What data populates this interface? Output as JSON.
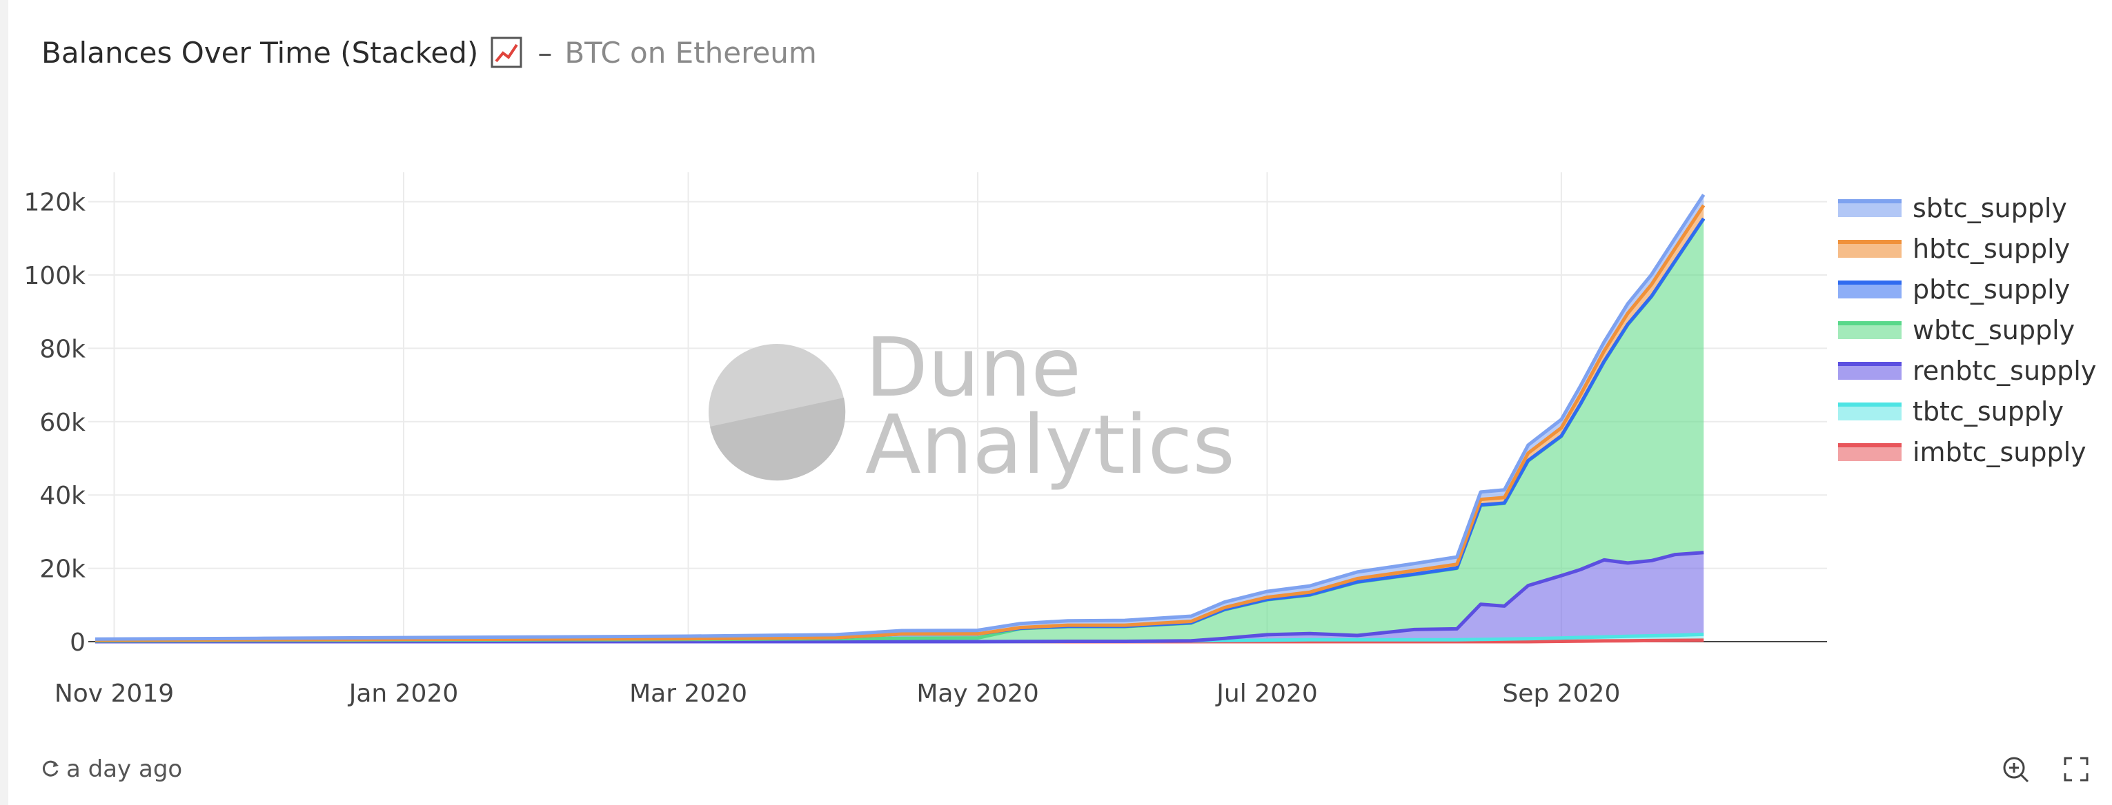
{
  "header": {
    "title": "Balances Over Time (Stacked)",
    "dash": "–",
    "subtitle": "BTC on Ethereum"
  },
  "watermark": {
    "line1": "Dune",
    "line2": "Analytics"
  },
  "footer": {
    "refresh_text": "a day ago"
  },
  "chart_data": {
    "type": "area",
    "stacked": true,
    "x_axis": {
      "ticks": [
        "Nov 2019",
        "Jan 2020",
        "Mar 2020",
        "May 2020",
        "Jul 2020",
        "Sep 2020"
      ],
      "range": [
        "2019-10-28",
        "2020-10-27"
      ]
    },
    "y_axis": {
      "ticks": [
        "0",
        "20k",
        "40k",
        "60k",
        "80k",
        "100k",
        "120k"
      ],
      "range": [
        0,
        128000
      ]
    },
    "grid": true,
    "legend_position": "right",
    "x": [
      "2019-10-28",
      "2019-12-01",
      "2020-01-01",
      "2020-02-01",
      "2020-03-01",
      "2020-04-01",
      "2020-04-15",
      "2020-05-01",
      "2020-05-10",
      "2020-05-20",
      "2020-06-01",
      "2020-06-15",
      "2020-06-22",
      "2020-07-01",
      "2020-07-10",
      "2020-07-20",
      "2020-08-01",
      "2020-08-10",
      "2020-08-15",
      "2020-08-20",
      "2020-08-25",
      "2020-09-01",
      "2020-09-05",
      "2020-09-10",
      "2020-09-15",
      "2020-09-20",
      "2020-09-25",
      "2020-10-01"
    ],
    "series": [
      {
        "name": "imbtc_supply",
        "color": "#e8555a",
        "fill": "rgba(232,85,90,0.5)",
        "values": [
          0,
          0,
          0,
          0,
          0,
          0,
          0,
          0,
          0,
          0,
          0,
          0,
          0,
          0,
          0,
          0,
          0,
          0,
          0,
          0,
          0,
          100,
          150,
          200,
          250,
          300,
          350,
          400
        ]
      },
      {
        "name": "tbtc_supply",
        "color": "#4ee4e4",
        "fill": "rgba(78,228,228,0.45)",
        "values": [
          0,
          0,
          0,
          0,
          0,
          0,
          0,
          0,
          50,
          100,
          100,
          200,
          300,
          400,
          500,
          500,
          500,
          500,
          600,
          700,
          800,
          900,
          1000,
          1100,
          1200,
          1300,
          1400,
          1600
        ]
      },
      {
        "name": "renbtc_supply",
        "color": "#5b4fe0",
        "fill": "rgba(106,94,230,0.55)",
        "values": [
          0,
          0,
          0,
          0,
          0,
          0,
          0,
          0,
          0,
          0,
          0,
          50,
          600,
          1500,
          1700,
          1200,
          2800,
          3000,
          9600,
          9000,
          14500,
          17000,
          18500,
          21000,
          20000,
          20500,
          22000,
          22300
        ]
      },
      {
        "name": "wbtc_supply",
        "color": "#59d88a",
        "fill": "rgba(102,220,140,0.6)",
        "values": [
          200,
          300,
          400,
          500,
          600,
          800,
          900,
          1000,
          3500,
          4000,
          4000,
          4800,
          7800,
          9500,
          10500,
          14500,
          15000,
          16500,
          27000,
          28000,
          34000,
          38000,
          45000,
          54000,
          65000,
          72000,
          80000,
          91000
        ]
      },
      {
        "name": "pbtc_supply",
        "color": "#2f6bf0",
        "fill": "rgba(47,107,240,0.5)",
        "values": [
          200,
          200,
          200,
          200,
          200,
          300,
          1200,
          1100,
          100,
          100,
          100,
          100,
          100,
          100,
          100,
          100,
          100,
          100,
          100,
          100,
          100,
          100,
          100,
          100,
          100,
          100,
          100,
          100
        ]
      },
      {
        "name": "hbtc_supply",
        "color": "#f0913a",
        "fill": "rgba(240,145,58,0.55)",
        "values": [
          0,
          0,
          0,
          0,
          0,
          0,
          0,
          0,
          200,
          300,
          300,
          400,
          500,
          600,
          700,
          900,
          1000,
          1000,
          1500,
          1500,
          2000,
          2200,
          2500,
          2800,
          3000,
          3200,
          3400,
          3600
        ]
      },
      {
        "name": "sbtc_supply",
        "color": "#7ea2f0",
        "fill": "rgba(126,162,240,0.55)",
        "values": [
          300,
          400,
          500,
          600,
          700,
          800,
          900,
          1000,
          1100,
          1200,
          1300,
          1400,
          1500,
          1600,
          1700,
          1800,
          1900,
          2000,
          2000,
          2100,
          2200,
          2300,
          2400,
          2500,
          2600,
          2700,
          2800,
          2900
        ]
      }
    ]
  },
  "legend": [
    {
      "label": "sbtc_supply",
      "color": "#7ea2f0",
      "fill": "rgba(126,162,240,0.6)"
    },
    {
      "label": "hbtc_supply",
      "color": "#f0913a",
      "fill": "rgba(240,145,58,0.6)"
    },
    {
      "label": "pbtc_supply",
      "color": "#2f6bf0",
      "fill": "rgba(47,107,240,0.55)"
    },
    {
      "label": "wbtc_supply",
      "color": "#59d88a",
      "fill": "rgba(102,220,140,0.6)"
    },
    {
      "label": "renbtc_supply",
      "color": "#5b4fe0",
      "fill": "rgba(106,94,230,0.6)"
    },
    {
      "label": "tbtc_supply",
      "color": "#4ee4e4",
      "fill": "rgba(78,228,228,0.5)"
    },
    {
      "label": "imbtc_supply",
      "color": "#e8555a",
      "fill": "rgba(232,85,90,0.55)"
    }
  ]
}
